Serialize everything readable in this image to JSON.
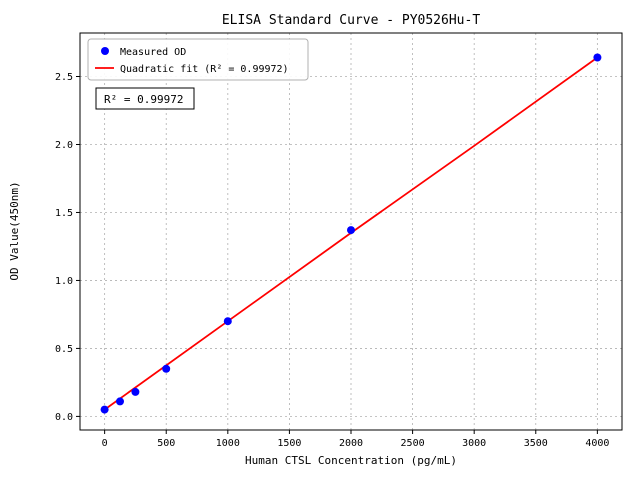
{
  "chart_data": {
    "type": "scatter",
    "title": "ELISA Standard Curve - PY0526Hu-T",
    "xlabel": "Human CTSL Concentration (pg/mL)",
    "ylabel": "OD Value(450nm)",
    "xlim": [
      -200,
      4200
    ],
    "ylim": [
      -0.1,
      2.82
    ],
    "xticks": [
      0,
      500,
      1000,
      1500,
      2000,
      2500,
      3000,
      3500,
      4000
    ],
    "yticks": [
      0.0,
      0.5,
      1.0,
      1.5,
      2.0,
      2.5
    ],
    "grid": true,
    "legend_position": "upper left",
    "annotation": "R² = 0.99972",
    "r_squared": 0.99972,
    "colors": {
      "points": "#0000ff",
      "fit_line": "#ff0000",
      "grid": "#b0b0b0"
    },
    "series": [
      {
        "name": "Measured OD",
        "type": "scatter",
        "color": "#0000ff",
        "x": [
          0,
          125,
          250,
          500,
          1000,
          2000,
          4000
        ],
        "y": [
          0.05,
          0.11,
          0.18,
          0.35,
          0.7,
          1.37,
          2.64
        ]
      },
      {
        "name": "Quadratic fit (R² = 0.99972)",
        "type": "line",
        "color": "#ff0000",
        "x": [
          0,
          1000,
          2000,
          3000,
          4000
        ],
        "y": [
          0.05,
          0.7,
          1.35,
          1.99,
          2.64
        ]
      }
    ]
  }
}
